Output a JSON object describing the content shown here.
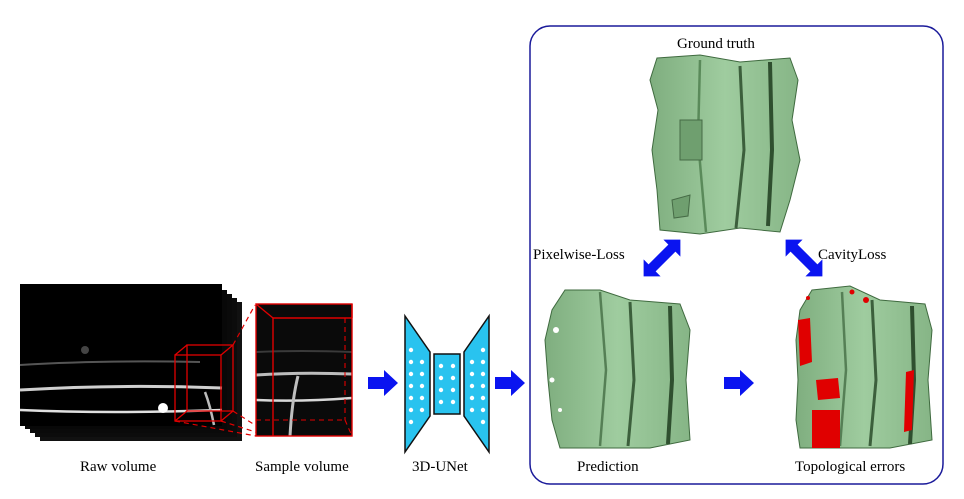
{
  "labels": {
    "raw_volume": "Raw volume",
    "sample_volume": "Sample volume",
    "unet": "3D-UNet",
    "ground_truth": "Ground truth",
    "pixelwise_loss": "Pixelwise-Loss",
    "cavity_loss": "CavityLoss",
    "prediction": "Prediction",
    "topological_errors": "Topological errors"
  },
  "colors": {
    "arrow": "#0a14f0",
    "box_red": "#e00000",
    "unet_fill": "#29c3ef",
    "surface_green": "#8fbf8f",
    "error_red": "#e00000",
    "panel_border": "#1a1a9a"
  }
}
